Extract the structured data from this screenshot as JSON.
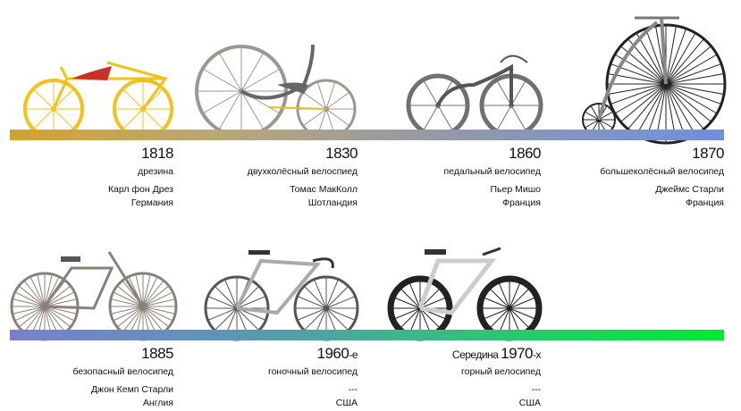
{
  "timeline": [
    {
      "year": "1818",
      "prefix": "",
      "suffix": "",
      "type": "дрезина",
      "inventor": "Карл фон Дрез",
      "country": "Германия",
      "color": "#f2c21a"
    },
    {
      "year": "1830",
      "prefix": "",
      "suffix": "",
      "type": "двухколёсный велоспиед",
      "inventor": "Томас МакКолл",
      "country": "Шотландия",
      "color": "#a09690"
    },
    {
      "year": "1860",
      "prefix": "",
      "suffix": "",
      "type": "педальный велосипед",
      "inventor": "Пьер Мишо",
      "country": "Франция",
      "color": "#707070"
    },
    {
      "year": "1870",
      "prefix": "",
      "suffix": "",
      "type": "большеколёсный велосипед",
      "inventor": "Джеймс Старли",
      "country": "Франция",
      "color": "#222222"
    },
    {
      "year": "1885",
      "prefix": "",
      "suffix": "",
      "type": "безопасный велосипед",
      "inventor": "Джон Кемп Старли",
      "country": "Англия",
      "color": "#8a8078"
    },
    {
      "year": "1960",
      "prefix": "",
      "suffix": "-е",
      "type": "гоночный велосипед",
      "inventor": "---",
      "country": "США",
      "color": "#555555"
    },
    {
      "year": "1970",
      "prefix": "Середина ",
      "suffix": "-х",
      "type": "горный велосипед",
      "inventor": "---",
      "country": "США",
      "color": "#222222"
    }
  ]
}
